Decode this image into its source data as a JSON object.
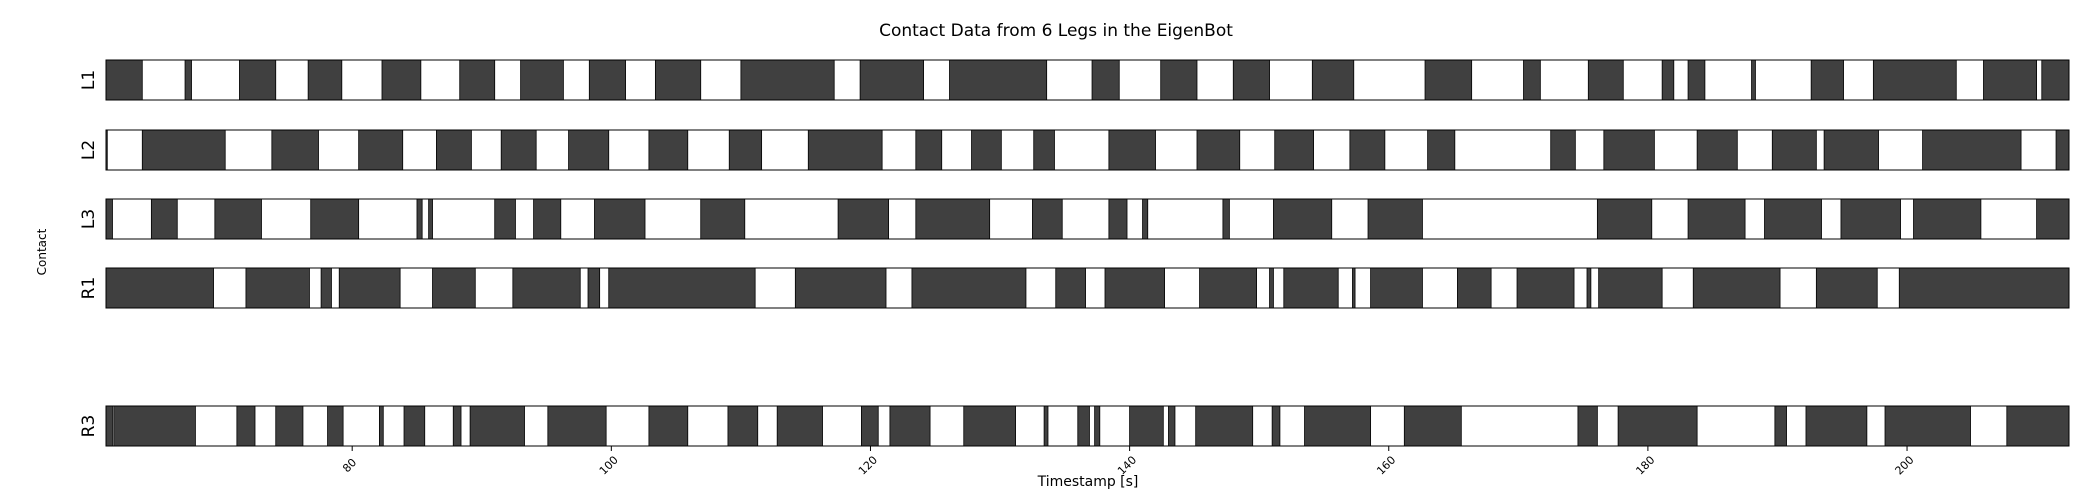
{
  "chart_data": {
    "type": "contact-timeline",
    "title": "Contact Data from 6 Legs in the EigenBot",
    "xlabel": "Timestamp [s]",
    "ylabel": "Contact",
    "xlim": [
      61,
      212.5
    ],
    "xticks": [
      80,
      100,
      120,
      140,
      160,
      180,
      200
    ],
    "colors": {
      "contact": "#404040",
      "no_contact": "#ffffff",
      "edge": "#000000"
    },
    "rows": [
      {
        "label": "L1",
        "contact": [
          [
            61,
            63.8
          ],
          [
            67.1,
            67.6
          ],
          [
            71.3,
            74.1
          ],
          [
            76.6,
            79.2
          ],
          [
            82.3,
            85.3
          ],
          [
            88.3,
            91
          ],
          [
            93,
            96.3
          ],
          [
            98.3,
            101.1
          ],
          [
            103.4,
            106.9
          ],
          [
            110,
            117.2
          ],
          [
            119.2,
            124.1
          ],
          [
            126.1,
            133.6
          ],
          [
            137.1,
            139.2
          ],
          [
            142.4,
            145.2
          ],
          [
            148,
            150.8
          ],
          [
            154.1,
            157.3
          ],
          [
            162.8,
            166.4
          ],
          [
            170.4,
            171.7
          ],
          [
            175.4,
            178.1
          ],
          [
            181.1,
            182
          ],
          [
            183.1,
            184.4
          ],
          [
            188,
            188.3
          ],
          [
            192.6,
            195.1
          ],
          [
            197.4,
            203.8
          ],
          [
            205.9,
            210
          ],
          [
            210.4,
            212.5
          ]
        ]
      },
      {
        "label": "L2",
        "contact": [
          [
            61,
            61.1
          ],
          [
            63.8,
            70.2
          ],
          [
            73.8,
            77.4
          ],
          [
            80.5,
            83.9
          ],
          [
            86.5,
            89.2
          ],
          [
            91.5,
            94.2
          ],
          [
            96.7,
            99.8
          ],
          [
            102.9,
            105.9
          ],
          [
            109.1,
            111.6
          ],
          [
            115.2,
            120.9
          ],
          [
            123.5,
            125.5
          ],
          [
            127.8,
            130.1
          ],
          [
            132.6,
            134.2
          ],
          [
            138.4,
            142
          ],
          [
            145.2,
            148.5
          ],
          [
            151.2,
            154.2
          ],
          [
            157,
            159.7
          ],
          [
            163,
            165.1
          ],
          [
            172.5,
            174.4
          ],
          [
            176.6,
            180.5
          ],
          [
            183.8,
            186.9
          ],
          [
            189.6,
            193
          ],
          [
            193.6,
            197.8
          ],
          [
            201.2,
            208.8
          ],
          [
            211.5,
            212.5
          ]
        ]
      },
      {
        "label": "L3",
        "contact": [
          [
            61,
            61.5
          ],
          [
            64.5,
            66.5
          ],
          [
            69.4,
            73
          ],
          [
            76.8,
            80.5
          ],
          [
            85,
            85.4
          ],
          [
            85.9,
            86.2
          ],
          [
            91,
            92.6
          ],
          [
            94,
            96.1
          ],
          [
            98.7,
            102.6
          ],
          [
            106.9,
            110.3
          ],
          [
            117.5,
            121.4
          ],
          [
            123.5,
            129.2
          ],
          [
            132.5,
            134.8
          ],
          [
            138.4,
            139.8
          ],
          [
            141,
            141.4
          ],
          [
            147.2,
            147.7
          ],
          [
            151.1,
            155.6
          ],
          [
            158.4,
            162.6
          ],
          [
            176.1,
            180.3
          ],
          [
            183.1,
            187.5
          ],
          [
            189,
            193.4
          ],
          [
            194.9,
            199.5
          ],
          [
            200.5,
            205.7
          ],
          [
            210,
            212.5
          ]
        ]
      },
      {
        "label": "R1",
        "contact": [
          [
            61,
            69.3
          ],
          [
            71.8,
            76.7
          ],
          [
            77.6,
            78.4
          ],
          [
            79,
            83.7
          ],
          [
            86.2,
            89.5
          ],
          [
            92.4,
            97.6
          ],
          [
            98.2,
            99.1
          ],
          [
            99.8,
            111.1
          ],
          [
            114.2,
            121.2
          ],
          [
            123.2,
            132
          ],
          [
            134.3,
            136.6
          ],
          [
            138.1,
            142.7
          ],
          [
            145.4,
            149.8
          ],
          [
            150.8,
            151.1
          ],
          [
            151.9,
            156.1
          ],
          [
            157.2,
            157.4
          ],
          [
            158.6,
            162.6
          ],
          [
            165.3,
            167.9
          ],
          [
            169.9,
            174.3
          ],
          [
            175.3,
            175.6
          ],
          [
            176.2,
            181.1
          ],
          [
            183.5,
            190.2
          ],
          [
            193,
            197.7
          ],
          [
            199.4,
            212.5
          ]
        ]
      },
      {
        "label": "R3",
        "contact": [
          [
            61,
            61.5
          ],
          [
            61.6,
            67.9
          ],
          [
            71.1,
            72.5
          ],
          [
            74.1,
            76.2
          ],
          [
            78.1,
            79.3
          ],
          [
            82.1,
            82.4
          ],
          [
            84,
            85.6
          ],
          [
            87.8,
            88.4
          ],
          [
            89.1,
            93.3
          ],
          [
            95.1,
            99.6
          ],
          [
            102.9,
            105.9
          ],
          [
            109,
            111.3
          ],
          [
            112.8,
            116.3
          ],
          [
            119.3,
            120.6
          ],
          [
            121.5,
            124.6
          ],
          [
            127.2,
            131.2
          ],
          [
            133.4,
            133.7
          ],
          [
            136,
            136.9
          ],
          [
            137.3,
            137.7
          ],
          [
            140,
            142.6
          ],
          [
            143,
            143.5
          ],
          [
            145.1,
            149.5
          ],
          [
            151,
            151.6
          ],
          [
            153.5,
            158.6
          ],
          [
            161.2,
            165.6
          ],
          [
            174.6,
            176.1
          ],
          [
            177.7,
            183.8
          ],
          [
            189.8,
            190.7
          ],
          [
            192.2,
            196.9
          ],
          [
            198.3,
            204.9
          ],
          [
            207.7,
            212.8
          ]
        ]
      }
    ]
  }
}
